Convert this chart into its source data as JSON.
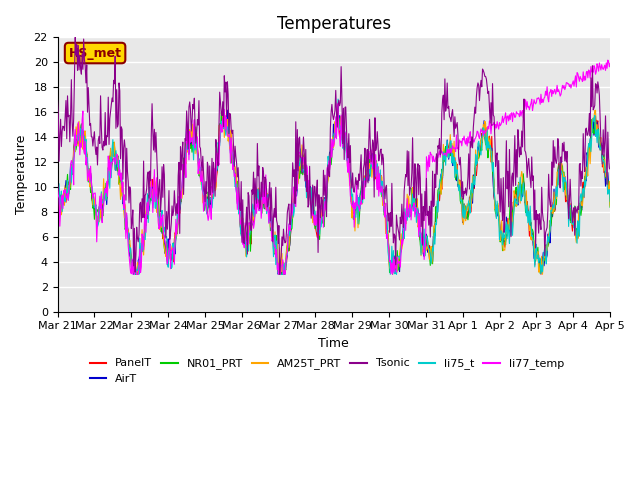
{
  "title": "Temperatures",
  "xlabel": "Time",
  "ylabel": "Temperature",
  "ylim": [
    0,
    22
  ],
  "yticks": [
    0,
    2,
    4,
    6,
    8,
    10,
    12,
    14,
    16,
    18,
    20,
    22
  ],
  "x_labels": [
    "Mar 21",
    "Mar 22",
    "Mar 23",
    "Mar 24",
    "Mar 25",
    "Mar 26",
    "Mar 27",
    "Mar 28",
    "Mar 29",
    "Mar 30",
    "Mar 31",
    "Apr 1",
    "Apr 2",
    "Apr 3",
    "Apr 4",
    "Apr 5"
  ],
  "annotation_label": "HS_met",
  "annotation_color": "#8B0000",
  "annotation_bg": "#FFD700",
  "series_colors": {
    "PanelT": "#FF0000",
    "AirT": "#0000CD",
    "NR01_PRT": "#00CC00",
    "AM25T_PRT": "#FFA500",
    "Tsonic": "#8B008B",
    "li75_t": "#00CCCC",
    "li77_temp": "#FF00FF"
  },
  "background_color": "#E8E8E8",
  "grid_color": "#FFFFFF",
  "title_fontsize": 12,
  "axis_fontsize": 9,
  "tick_fontsize": 8
}
